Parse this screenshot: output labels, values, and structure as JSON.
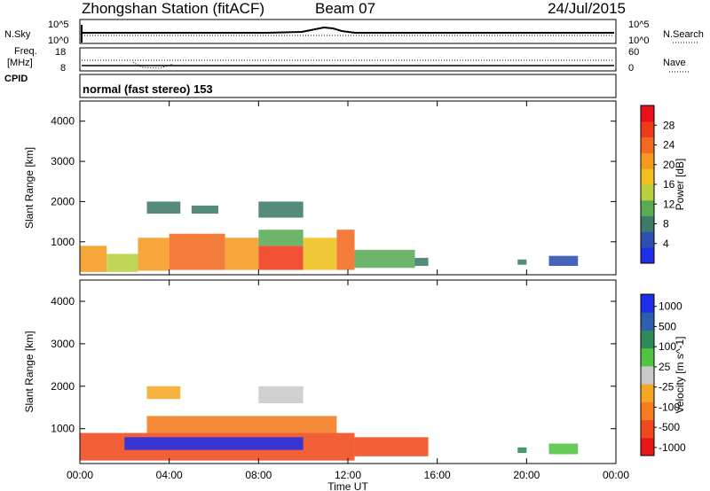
{
  "header": {
    "station": "Zhongshan Station (fitACF)",
    "beam": "Beam 07",
    "date": "24/Jul/2015"
  },
  "mode_label": "normal (fast stereo) 153",
  "strip_labels": {
    "nsky": "N.Sky",
    "nsearch": "N.Search",
    "freq": "Freq.",
    "freq_unit": "[MHz]",
    "cpid": "CPID",
    "nave": "Nave",
    "nsky_ticks": [
      "10^5",
      "10^0"
    ],
    "nsearch_ticks": [
      "10^5",
      "10^0"
    ],
    "freq_ticks": [
      "18",
      "8"
    ],
    "nave_ticks": [
      "60",
      "0"
    ]
  },
  "colors": {
    "power_scale": [
      "#1f2fe8",
      "#2c4fb0",
      "#3d7a6a",
      "#5aaa55",
      "#b8d040",
      "#f0c020",
      "#f59a20",
      "#f26a20",
      "#ef3a1a",
      "#e8101a"
    ],
    "velocity_scale": [
      "#e81818",
      "#f04a1c",
      "#f57c1f",
      "#f5a825",
      "#c9c9c9",
      "#4ec440",
      "#2f8a5a",
      "#2d5fb0",
      "#1f2fe8"
    ]
  },
  "chart_data": [
    {
      "type": "heatmap",
      "title": "",
      "xlabel": "Time UT",
      "ylabel": "Slant Range [km]",
      "colorbar_label": "Power [dB]",
      "xlim": [
        0,
        24
      ],
      "ylim": [
        180,
        4500
      ],
      "x_ticks": [
        "00:00",
        "04:00",
        "08:00",
        "12:00",
        "16:00",
        "20:00",
        "00:00"
      ],
      "y_ticks": [
        "1000",
        "2000",
        "3000",
        "4000"
      ],
      "colorbar_ticks": [
        "4",
        "8",
        "12",
        "16",
        "20",
        "24",
        "28"
      ],
      "colorbar_range": [
        0,
        32
      ],
      "regions": [
        {
          "t": [
            0.0,
            1.2
          ],
          "r": [
            250,
            900
          ],
          "value": 20
        },
        {
          "t": [
            1.2,
            2.6
          ],
          "r": [
            250,
            700
          ],
          "value": 14
        },
        {
          "t": [
            2.6,
            4.0
          ],
          "r": [
            280,
            1100
          ],
          "value": 22
        },
        {
          "t": [
            4.0,
            6.5
          ],
          "r": [
            300,
            1200
          ],
          "value": 24
        },
        {
          "t": [
            6.5,
            8.0
          ],
          "r": [
            300,
            1100
          ],
          "value": 22
        },
        {
          "t": [
            8.0,
            10.0
          ],
          "r": [
            300,
            900
          ],
          "value": 28
        },
        {
          "t": [
            8.0,
            10.0
          ],
          "r": [
            900,
            1300
          ],
          "value": 12
        },
        {
          "t": [
            10.0,
            11.5
          ],
          "r": [
            300,
            1100
          ],
          "value": 18
        },
        {
          "t": [
            11.5,
            12.3
          ],
          "r": [
            300,
            1300
          ],
          "value": 24
        },
        {
          "t": [
            12.3,
            15.0
          ],
          "r": [
            350,
            800
          ],
          "value": 10
        },
        {
          "t": [
            15.0,
            15.6
          ],
          "r": [
            400,
            600
          ],
          "value": 8
        },
        {
          "t": [
            19.6,
            20.0
          ],
          "r": [
            430,
            560
          ],
          "value": 8
        },
        {
          "t": [
            21.0,
            22.3
          ],
          "r": [
            400,
            650
          ],
          "value": 6
        },
        {
          "t": [
            3.0,
            4.5
          ],
          "r": [
            1700,
            2000
          ],
          "value": 8
        },
        {
          "t": [
            8.0,
            10.0
          ],
          "r": [
            1600,
            2000
          ],
          "value": 8
        },
        {
          "t": [
            5.0,
            6.2
          ],
          "r": [
            1700,
            1900
          ],
          "value": 8
        }
      ]
    },
    {
      "type": "heatmap",
      "title": "",
      "xlabel": "Time UT",
      "ylabel": "Slant Range [km]",
      "colorbar_label": "Velocity [m s^-1]",
      "xlim": [
        0,
        24
      ],
      "ylim": [
        180,
        4500
      ],
      "x_ticks": [
        "00:00",
        "04:00",
        "08:00",
        "12:00",
        "16:00",
        "20:00",
        "00:00"
      ],
      "y_ticks": [
        "1000",
        "2000",
        "3000",
        "4000"
      ],
      "colorbar_ticks": [
        "1000",
        "500",
        "100",
        "25",
        "-25",
        "-100",
        "-500",
        "-1000"
      ],
      "regions": [
        {
          "t": [
            0.0,
            12.3
          ],
          "r": [
            250,
            900
          ],
          "class": "-500"
        },
        {
          "t": [
            2.0,
            10.0
          ],
          "r": [
            500,
            800
          ],
          "class": "1000"
        },
        {
          "t": [
            3.0,
            11.5
          ],
          "r": [
            900,
            1300
          ],
          "class": "-100"
        },
        {
          "t": [
            3.0,
            4.5
          ],
          "r": [
            1700,
            2000
          ],
          "class": "-25"
        },
        {
          "t": [
            8.0,
            10.0
          ],
          "r": [
            1600,
            2000
          ],
          "class": "25"
        },
        {
          "t": [
            12.3,
            15.6
          ],
          "r": [
            350,
            800
          ],
          "class": "-500"
        },
        {
          "t": [
            19.6,
            20.0
          ],
          "r": [
            430,
            560
          ],
          "class": "500"
        },
        {
          "t": [
            21.0,
            22.3
          ],
          "r": [
            400,
            650
          ],
          "class": "100"
        }
      ]
    }
  ]
}
